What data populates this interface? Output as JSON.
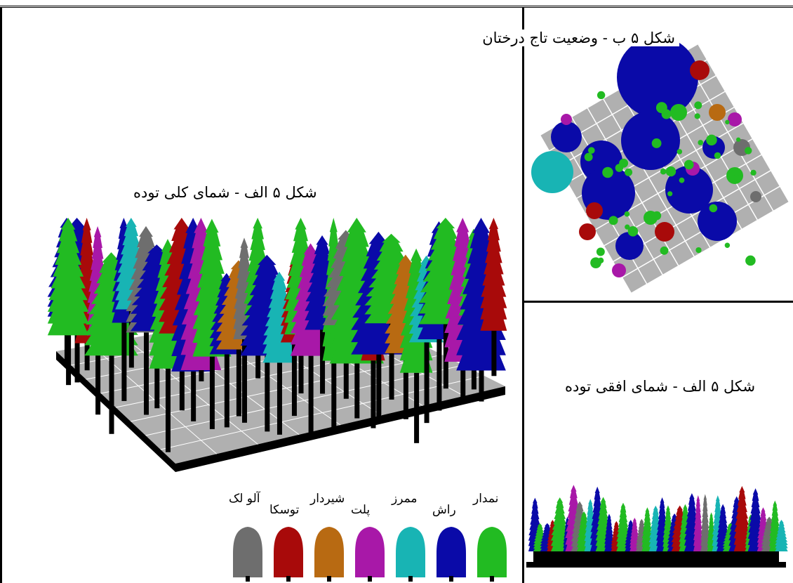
{
  "labels": {
    "crown_status": "شکل ۵ ب - وضعیت تاج درختان",
    "general_view": "شکل ۵ الف - شمای کلی توده",
    "horizontal_view": "شکل ۵ الف - شمای افقی توده"
  },
  "legend": [
    {
      "name": "نمدار",
      "color": "#22bb22"
    },
    {
      "name": "راش",
      "color": "#0a0aa8"
    },
    {
      "name": "ممرز",
      "color": "#18b4b4"
    },
    {
      "name": "پلت",
      "color": "#a818a8"
    },
    {
      "name": "شیردار",
      "color": "#b86a12"
    },
    {
      "name": "توسکا",
      "color": "#a80a0a"
    },
    {
      "name": "آلو لک",
      "color": "#6e6e6e"
    }
  ],
  "colors": {
    "ground": "#b0b0b0",
    "grid": "#ffffff",
    "trunk": "#000000"
  }
}
